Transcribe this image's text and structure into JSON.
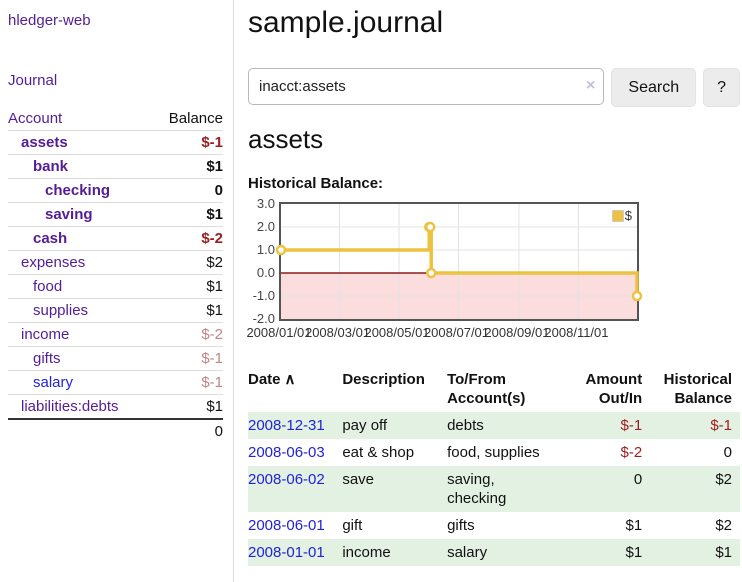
{
  "sidebar": {
    "brand": "hledger-web",
    "nav_journal": "Journal",
    "accounts_header": {
      "account": "Account",
      "balance": "Balance"
    },
    "accounts": [
      {
        "name": "assets",
        "balance": "$-1",
        "level": 1,
        "bold": true,
        "value_style": "neg-strong"
      },
      {
        "name": "bank",
        "balance": "$1",
        "level": 2,
        "bold": true,
        "value_style": ""
      },
      {
        "name": "checking",
        "balance": "0",
        "level": 3,
        "bold": true,
        "value_style": ""
      },
      {
        "name": "saving",
        "balance": "$1",
        "level": 3,
        "bold": true,
        "value_style": ""
      },
      {
        "name": "cash",
        "balance": "$-2",
        "level": 2,
        "bold": true,
        "value_style": "neg-strong"
      },
      {
        "name": "expenses",
        "balance": "$2",
        "level": 1,
        "bold": false,
        "value_style": ""
      },
      {
        "name": "food",
        "balance": "$1",
        "level": 2,
        "bold": false,
        "value_style": ""
      },
      {
        "name": "supplies",
        "balance": "$1",
        "level": 2,
        "bold": false,
        "value_style": ""
      },
      {
        "name": "income",
        "balance": "$-2",
        "level": 1,
        "bold": false,
        "value_style": "neg-dim"
      },
      {
        "name": "gifts",
        "balance": "$-1",
        "level": 2,
        "bold": false,
        "value_style": "neg-dim"
      },
      {
        "name": "salary",
        "balance": "$-1",
        "level": 2,
        "bold": false,
        "value_style": "neg-dim",
        "link_style": "unvisited"
      },
      {
        "name": "liabilities:debts",
        "balance": "$1",
        "level": 1,
        "bold": false,
        "value_style": ""
      }
    ],
    "total": "0"
  },
  "header": {
    "title": "sample.journal"
  },
  "search": {
    "value": "inacct:assets",
    "clear_icon": "×",
    "button_label": "Search",
    "help_label": "?"
  },
  "account_page": {
    "heading": "assets",
    "chart_label": "Historical Balance:"
  },
  "chart_data": {
    "type": "line",
    "title": "Historical Balance:",
    "step": true,
    "x": [
      "2008-01-01",
      "2008-06-01",
      "2008-06-02",
      "2008-06-03",
      "2008-12-31"
    ],
    "series": [
      {
        "name": "$",
        "color": "#edc240",
        "values": [
          1,
          2,
          2,
          0,
          -1
        ]
      }
    ],
    "x_ticks": [
      "2008/01/01",
      "2008/03/01",
      "2008/05/01",
      "2008/07/01",
      "2008/09/01",
      "2008/11/01"
    ],
    "y_ticks": [
      "3.0",
      "2.0",
      "1.0",
      "0.0",
      "-1.0",
      "-2.0"
    ],
    "ylim": [
      -2,
      3
    ],
    "xlim": [
      "2008-01-01",
      "2008-12-31"
    ],
    "grid": true,
    "legend_position": "top-right",
    "legend_entries": [
      "$"
    ],
    "negative_fill": "#fbdddd",
    "zero_line_color": "#8b1c1c",
    "grid_color": "#e3e3e3",
    "marker_fill": "#ffffff"
  },
  "register_table": {
    "columns": [
      "Date",
      "Description",
      "To/From Account(s)",
      "Amount Out/In",
      "Historical Balance"
    ],
    "sort_indicator": "∧",
    "rows": [
      {
        "date": "2008-12-31",
        "description": "pay off",
        "accounts": "debts",
        "amount": "$-1",
        "amount_style": "neg-strong",
        "balance": "$-1",
        "balance_style": "neg-strong"
      },
      {
        "date": "2008-06-03",
        "description": "eat & shop",
        "accounts": "food, supplies",
        "amount": "$-2",
        "amount_style": "neg-strong",
        "balance": "0",
        "balance_style": ""
      },
      {
        "date": "2008-06-02",
        "description": "save",
        "accounts": "saving, checking",
        "amount": "0",
        "amount_style": "",
        "balance": "$2",
        "balance_style": ""
      },
      {
        "date": "2008-06-01",
        "description": "gift",
        "accounts": "gifts",
        "amount": "$1",
        "amount_style": "",
        "balance": "$2",
        "balance_style": ""
      },
      {
        "date": "2008-01-01",
        "description": "income",
        "accounts": "salary",
        "amount": "$1",
        "amount_style": "",
        "balance": "$1",
        "balance_style": ""
      }
    ]
  }
}
